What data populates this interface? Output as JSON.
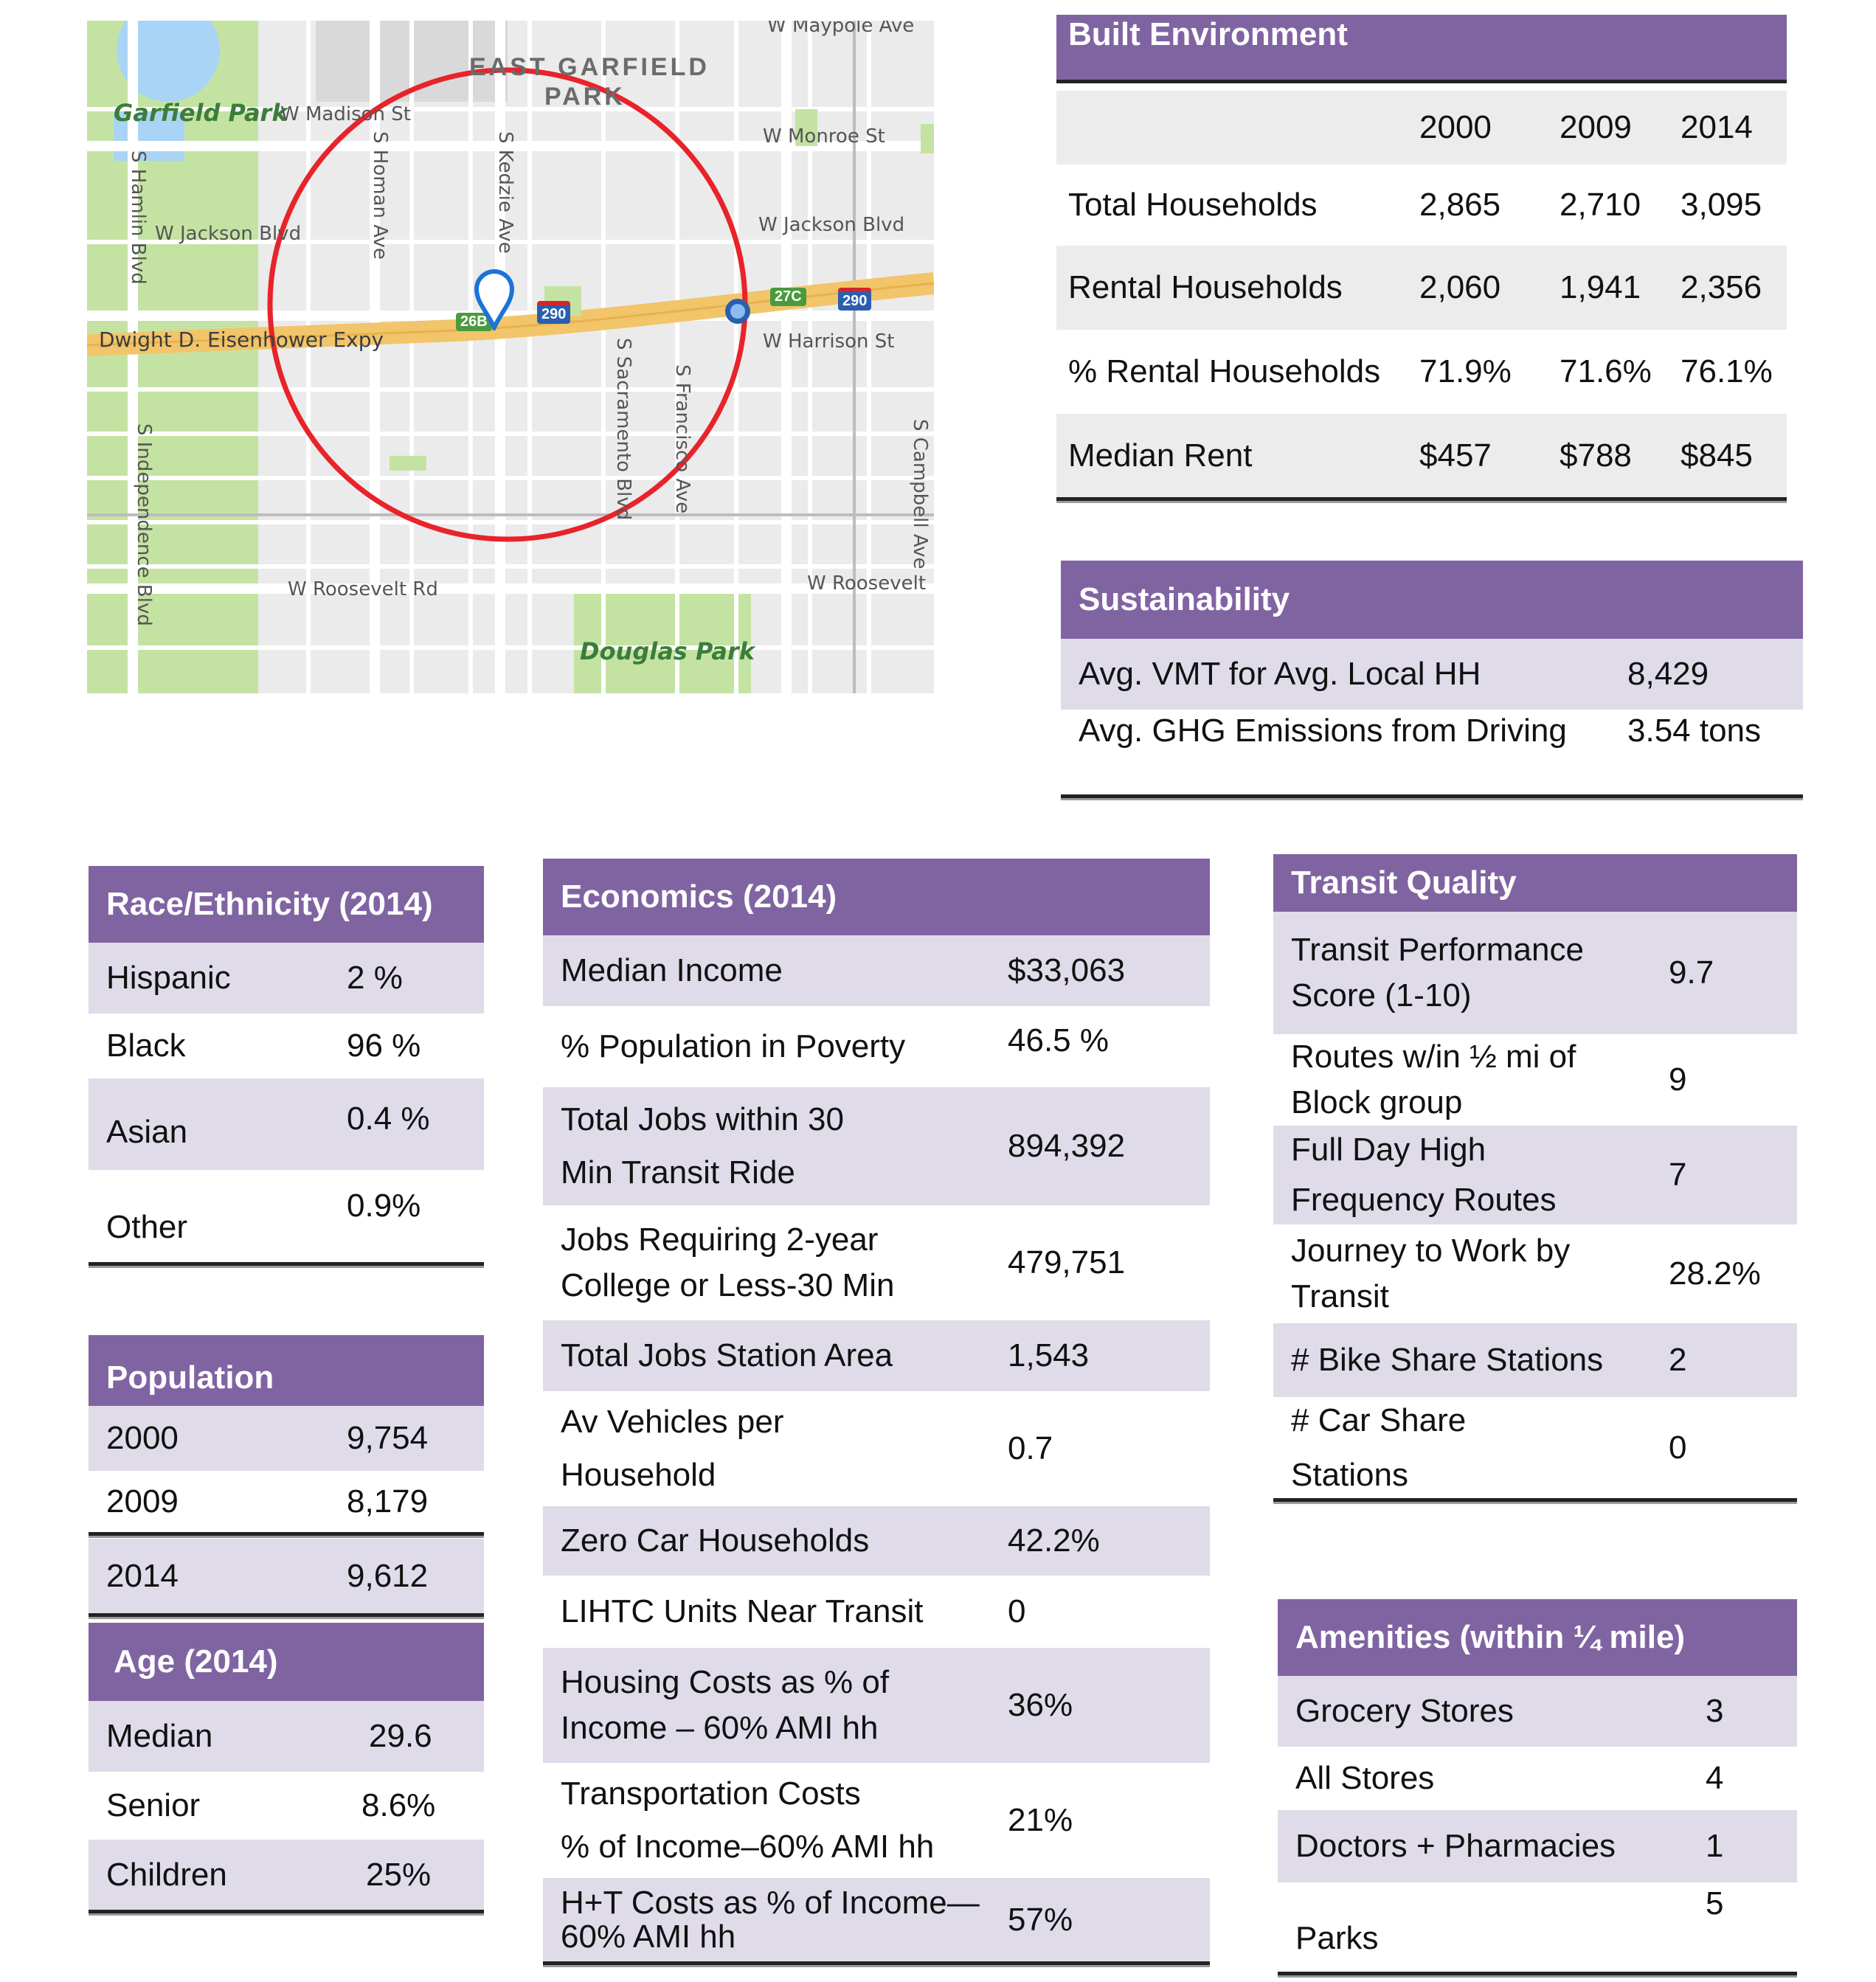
{
  "map": {
    "labels": {
      "area": "EAST GARFIELD",
      "area2": "PARK",
      "garfield_park": "Garfield Park",
      "douglas_park": "Douglas Park",
      "w_madison": "W Madison St",
      "w_maypole": "W Maypole Ave",
      "w_monroe": "W Monroe St",
      "w_jackson_left": "W Jackson Blvd",
      "w_jackson_right": "W Jackson Blvd",
      "eisenhower": "Dwight D. Eisenhower Expy",
      "w_harrison": "W Harrison St",
      "w_roosevelt_left": "W Roosevelt Rd",
      "w_roosevelt_right": "W Roosevelt",
      "s_hamlin": "S Hamlin Blvd",
      "s_homan": "S Homan Ave",
      "s_kedzie": "S Kedzie Ave",
      "s_sacramento": "S Sacramento Blvd",
      "s_francisco": "S Francisco Ave",
      "s_independence": "S Independence Blvd",
      "s_campbell": "S Campbell Ave",
      "shield_26b": "26B",
      "shield_290a": "290",
      "shield_27c": "27C",
      "shield_290b": "290"
    },
    "icons": [
      "location-pin-icon",
      "interstate-shield-icon",
      "transit-station-icon"
    ]
  },
  "built_environment": {
    "title": "Built Environment",
    "years": [
      "2000",
      "2009",
      "2014"
    ],
    "rows": [
      {
        "label": "Total Households",
        "values": [
          "2,865",
          "2,710",
          "3,095"
        ]
      },
      {
        "label": "Rental Households",
        "values": [
          "2,060",
          "1,941",
          "2,356"
        ]
      },
      {
        "label": "% Rental Households",
        "values": [
          "71.9%",
          "71.6%",
          "76.1%"
        ]
      },
      {
        "label": "Median Rent",
        "values": [
          "$457",
          "$788",
          "$845"
        ]
      }
    ]
  },
  "sustainability": {
    "title": "Sustainability",
    "rows": [
      {
        "label": "Avg. VMT  for Avg. Local HH",
        "value": "8,429"
      },
      {
        "label": "Avg. GHG Emissions from Driving",
        "value": "3.54 tons"
      }
    ]
  },
  "race": {
    "title": "Race/Ethnicity (2014)",
    "rows": [
      {
        "label": "Hispanic",
        "value": "2 %"
      },
      {
        "label": "Black",
        "value": "96 %"
      },
      {
        "label": "Asian",
        "value": "0.4 %"
      },
      {
        "label": "Other",
        "value": "0.9%"
      }
    ]
  },
  "population": {
    "title": "Population",
    "rows": [
      {
        "label": "2000",
        "value": "9,754"
      },
      {
        "label": "2009",
        "value": "8,179"
      },
      {
        "label": "2014",
        "value": "9,612"
      }
    ]
  },
  "age": {
    "title": "Age (2014)",
    "rows": [
      {
        "label": "Median",
        "value": "29.6"
      },
      {
        "label": "Senior",
        "value": "8.6%"
      },
      {
        "label": "Children",
        "value": "25%"
      }
    ]
  },
  "economics": {
    "title": "Economics (2014)",
    "rows": [
      {
        "label": "Median Income",
        "value": "$33,063"
      },
      {
        "label": "% Population in Poverty",
        "value": "46.5 %"
      },
      {
        "label": "Total Jobs within 30",
        "label2": "Min Transit Ride",
        "value": "894,392"
      },
      {
        "label": "Jobs Requiring 2-year",
        "label2": "College or Less-30 Min",
        "value": "479,751"
      },
      {
        "label": "Total Jobs Station Area",
        "value": "1,543"
      },
      {
        "label": "Av Vehicles per",
        "label2": "Household",
        "value": "0.7"
      },
      {
        "label": "Zero Car Households",
        "value": "42.2%"
      },
      {
        "label": "LIHTC Units Near Transit",
        "value": "0"
      },
      {
        "label": "Housing Costs as % of",
        "label2": "Income – 60% AMI hh",
        "value": "36%"
      },
      {
        "label": "Transportation Costs",
        "label2": "% of Income–60% AMI hh",
        "value": "21%"
      },
      {
        "label": "H+T Costs as % of Income—",
        "label2": "60% AMI hh",
        "value": "57%"
      }
    ]
  },
  "transit": {
    "title": "Transit Quality",
    "rows": [
      {
        "label": "Transit Performance",
        "label2": "Score (1-10)",
        "value": "9.7"
      },
      {
        "label": "Routes w/in ½ mi of",
        "label2": "Block group",
        "value": "9"
      },
      {
        "label": "Full Day High",
        "label2": "Frequency Routes",
        "value": "7"
      },
      {
        "label": "Journey to Work by",
        "label2": "Transit",
        "value": "28.2%"
      },
      {
        "label": "# Bike Share Stations",
        "value": "2"
      },
      {
        "label": "# Car Share",
        "label2": "Stations",
        "value": "0"
      }
    ]
  },
  "amenities": {
    "title": "Amenities (within ¼ mile)",
    "rows": [
      {
        "label": "Grocery Stores",
        "value": "3"
      },
      {
        "label": "All Stores",
        "value": "4"
      },
      {
        "label": "Doctors + Pharmacies",
        "value": "1"
      },
      {
        "label": "Parks",
        "value": "5"
      }
    ]
  },
  "colors": {
    "header": "#8064a2",
    "shade": "#e0dbe9",
    "circle": "#e8232a",
    "park": "#c4e3a3",
    "highway": "#f2c56b"
  }
}
